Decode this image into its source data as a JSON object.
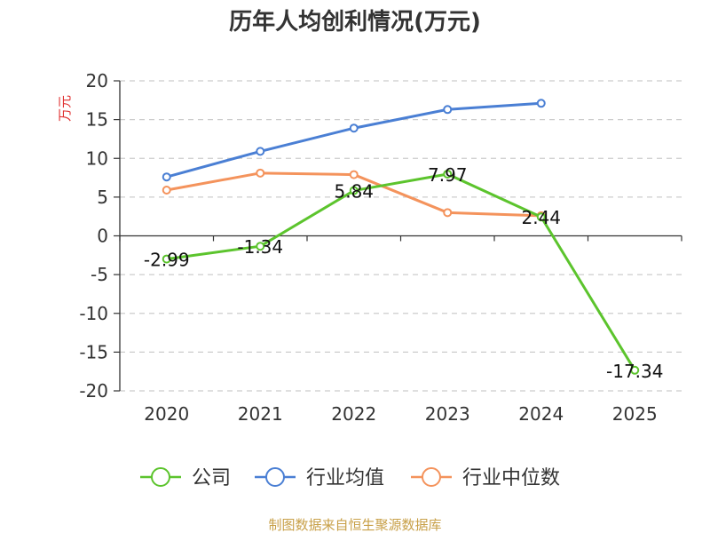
{
  "chart_data": {
    "type": "line",
    "title": "历年人均创利情况(万元)",
    "ylabel": "万元",
    "xlabel": "",
    "categories": [
      "2020",
      "2021",
      "2022",
      "2023",
      "2024",
      "2025"
    ],
    "ylim": [
      -20,
      20
    ],
    "yticks": [
      20,
      15,
      10,
      5,
      0,
      -5,
      -10,
      -15,
      -20
    ],
    "grid": true,
    "legend_position": "bottom-center",
    "series": [
      {
        "name": "公司",
        "color": "#5cc42d",
        "values": [
          -2.99,
          -1.34,
          5.84,
          7.97,
          2.44,
          -17.34
        ],
        "labels": [
          "-2.99",
          "-1.34",
          "5.84",
          "7.97",
          "2.44",
          "-17.34"
        ]
      },
      {
        "name": "行业均值",
        "color": "#4a7fd4",
        "values": [
          7.6,
          10.9,
          13.9,
          16.3,
          17.1,
          null
        ]
      },
      {
        "name": "行业中位数",
        "color": "#f4935c",
        "values": [
          5.9,
          8.1,
          7.9,
          3.0,
          2.6,
          null
        ]
      }
    ]
  },
  "source": {
    "text": "制图数据来自恒生聚源数据库",
    "color": "#c8a048"
  },
  "ylabel_color": "#e03030"
}
